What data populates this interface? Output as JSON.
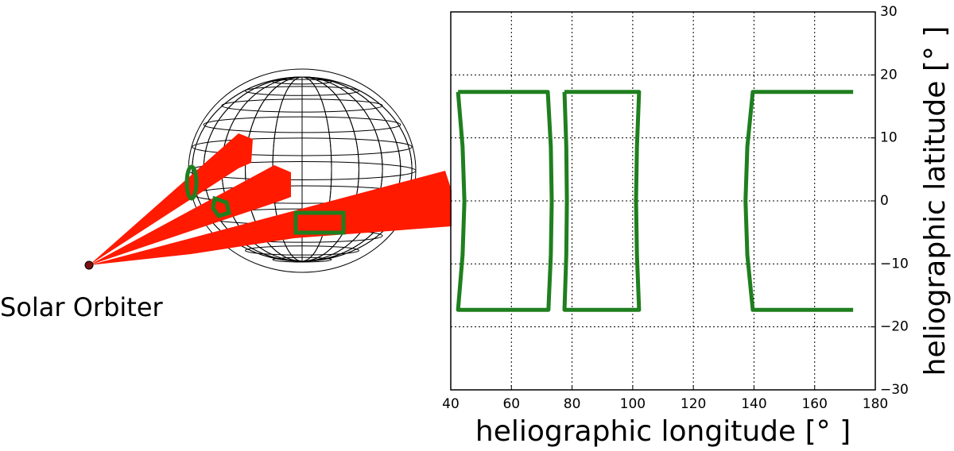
{
  "chart_data": {
    "type": "line",
    "annotations": [
      "Solar Orbiter"
    ],
    "xlabel": "heliographic longitude [° ]",
    "ylabel": "heliographic latitude [° ]",
    "xlim": [
      40,
      180
    ],
    "xticks": [
      40,
      60,
      80,
      100,
      120,
      140,
      160,
      180
    ],
    "ylim": [
      -30,
      30
    ],
    "yticks": [
      {
        "value": -30,
        "label": "−30"
      },
      {
        "value": -20,
        "label": "−20"
      },
      {
        "value": -10,
        "label": "−10"
      },
      0,
      10,
      20,
      30
    ],
    "grid": true,
    "series": [
      {
        "color": "#1f7f1f",
        "x": [
          42.4,
          72.0,
          73.0,
          73.3,
          73.0,
          72.2,
          42.4,
          43.9,
          44.5,
          43.9,
          42.4
        ],
        "values": [
          17.3,
          17.3,
          8.6,
          0,
          -8.6,
          -17.3,
          -17.3,
          -8.6,
          0,
          8.6,
          17.3
        ]
      },
      {
        "color": "#1f7f1f",
        "x": [
          77.5,
          102.1,
          101.4,
          101.1,
          101.4,
          102.1,
          77.5,
          78.1,
          78.3,
          78.1,
          77.5
        ],
        "values": [
          17.3,
          17.3,
          8.6,
          0,
          -8.6,
          -17.3,
          -17.3,
          -8.6,
          0,
          8.6,
          17.3
        ]
      },
      {
        "color": "#1f7f1f",
        "x": [
          172.7,
          139.6,
          137.8,
          137.2,
          137.8,
          139.6,
          172.7
        ],
        "values": [
          17.3,
          17.3,
          8.6,
          0,
          -8.6,
          -17.3,
          -17.3
        ]
      }
    ]
  }
}
